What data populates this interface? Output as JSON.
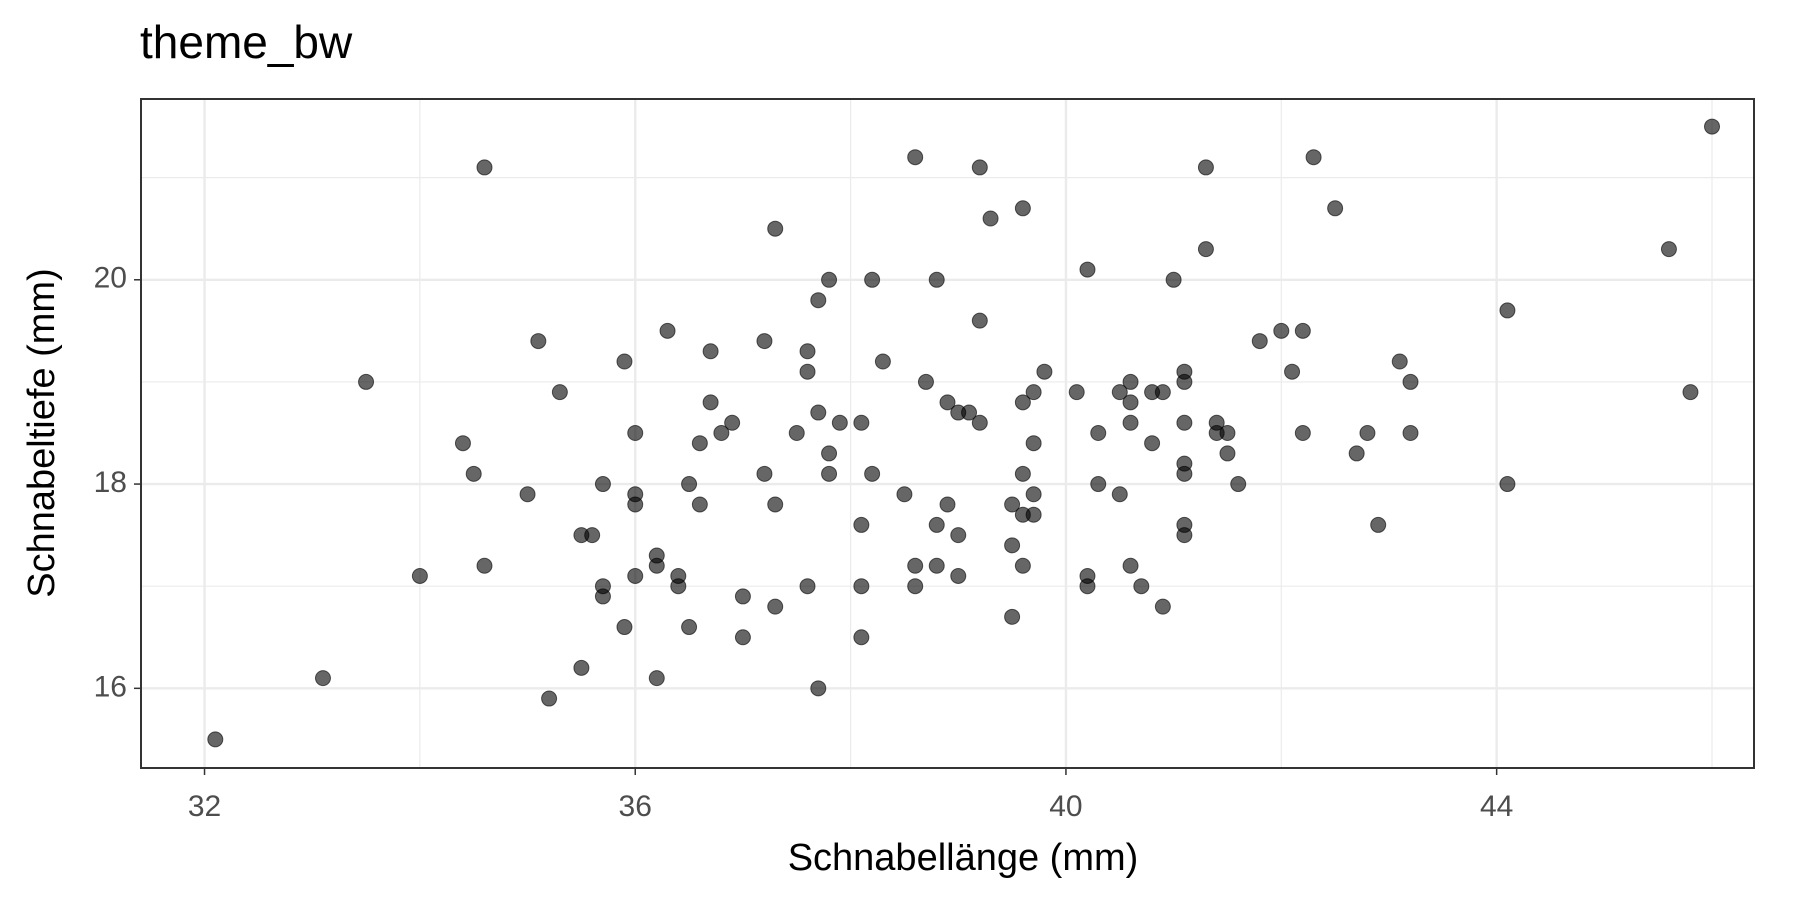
{
  "chart_data": {
    "type": "scatter",
    "title": "theme_bw",
    "x_label": "Schnabellänge (mm)",
    "y_label": "Schnabeltiefe (mm)",
    "x": [
      32.1,
      33.1,
      33.5,
      34.0,
      34.4,
      34.5,
      34.6,
      34.6,
      35.0,
      35.1,
      35.2,
      35.3,
      35.5,
      35.5,
      35.6,
      35.7,
      35.7,
      35.7,
      35.9,
      35.9,
      36.0,
      36.0,
      36.0,
      36.0,
      36.2,
      36.2,
      36.2,
      36.3,
      36.4,
      36.4,
      36.5,
      36.5,
      36.6,
      36.6,
      36.7,
      36.7,
      36.8,
      36.9,
      37.0,
      37.0,
      37.2,
      37.2,
      37.3,
      37.3,
      37.3,
      37.5,
      37.6,
      37.6,
      37.6,
      37.7,
      37.7,
      37.7,
      37.8,
      37.8,
      37.8,
      37.9,
      38.1,
      38.1,
      38.1,
      38.1,
      38.2,
      38.2,
      38.3,
      38.5,
      38.6,
      38.6,
      38.6,
      38.7,
      38.8,
      38.8,
      38.8,
      38.9,
      38.9,
      39.0,
      39.0,
      39.0,
      39.1,
      39.2,
      39.2,
      39.2,
      39.3,
      39.5,
      39.5,
      39.5,
      39.6,
      39.6,
      39.6,
      39.6,
      39.6,
      39.7,
      39.7,
      39.7,
      39.7,
      39.8,
      40.1,
      40.2,
      40.2,
      40.2,
      40.3,
      40.3,
      40.5,
      40.5,
      40.6,
      40.6,
      40.6,
      40.6,
      40.7,
      40.8,
      40.8,
      40.9,
      40.9,
      41.0,
      41.1,
      41.1,
      41.1,
      41.1,
      41.1,
      41.1,
      41.1,
      41.3,
      41.3,
      41.4,
      41.4,
      41.5,
      41.5,
      41.6,
      41.8,
      42.0,
      42.1,
      42.2,
      42.2,
      42.3,
      42.5,
      42.7,
      42.8,
      42.9,
      43.1,
      43.2,
      43.2,
      44.1,
      44.1,
      45.6,
      45.8,
      46.0
    ],
    "values": [
      15.5,
      16.1,
      19.0,
      17.1,
      18.4,
      18.1,
      21.1,
      17.2,
      17.9,
      19.4,
      15.9,
      18.9,
      17.5,
      16.2,
      17.5,
      18.0,
      17.0,
      16.9,
      19.2,
      16.6,
      18.5,
      17.9,
      17.8,
      17.1,
      17.3,
      17.2,
      16.1,
      19.5,
      17.1,
      17.0,
      18.0,
      16.6,
      18.4,
      17.8,
      19.3,
      18.8,
      18.5,
      18.6,
      16.9,
      16.5,
      19.4,
      18.1,
      20.5,
      17.8,
      16.8,
      18.5,
      19.3,
      19.1,
      17.0,
      19.8,
      18.7,
      16.0,
      20.0,
      18.3,
      18.1,
      18.6,
      18.6,
      17.6,
      17.0,
      16.5,
      20.0,
      18.1,
      19.2,
      17.9,
      21.2,
      17.2,
      17.0,
      19.0,
      20.0,
      17.6,
      17.2,
      18.8,
      17.8,
      18.7,
      17.5,
      17.1,
      18.7,
      21.1,
      19.6,
      18.6,
      20.6,
      17.8,
      17.4,
      16.7,
      20.7,
      18.8,
      18.1,
      17.7,
      17.2,
      18.9,
      18.4,
      17.9,
      17.7,
      19.1,
      18.9,
      20.1,
      17.1,
      17.0,
      18.5,
      18.0,
      18.9,
      17.9,
      19.0,
      18.8,
      18.6,
      17.2,
      17.0,
      18.9,
      18.4,
      18.9,
      16.8,
      20.0,
      19.1,
      19.0,
      18.6,
      18.2,
      18.1,
      17.6,
      17.5,
      21.1,
      20.3,
      18.6,
      18.5,
      18.5,
      18.3,
      18.0,
      19.4,
      19.5,
      19.1,
      19.5,
      18.5,
      21.2,
      20.7,
      18.3,
      18.5,
      17.6,
      19.2,
      19.0,
      18.5,
      19.7,
      18.0,
      20.3,
      18.9,
      21.5
    ],
    "color": "#000000",
    "alpha": 0.6,
    "xlim": [
      31.41,
      46.39
    ],
    "ylim": [
      15.22,
      21.77
    ],
    "xticks": [
      32,
      36,
      40,
      44
    ],
    "yticks": [
      16,
      18,
      20
    ],
    "x_minor_grid": [
      34,
      38,
      42,
      46
    ],
    "y_minor_grid": [
      17,
      19,
      21
    ],
    "grid": true
  }
}
